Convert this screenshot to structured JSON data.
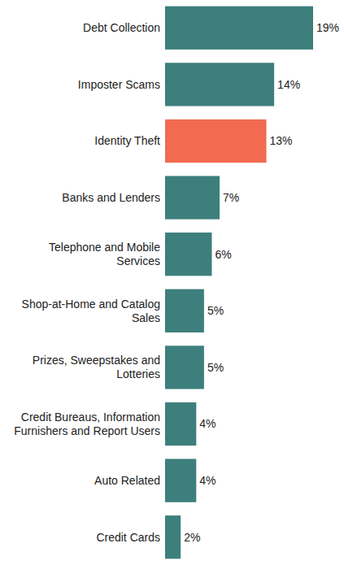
{
  "chart_data": {
    "type": "bar",
    "orientation": "horizontal",
    "categories": [
      "Debt Collection",
      "Imposter Scams",
      "Identity Theft",
      "Banks and Lenders",
      "Telephone and Mobile Services",
      "Shop-at-Home and Catalog Sales",
      "Prizes, Sweepstakes and Lotteries",
      "Credit Bureaus, Information Furnishers and Report Users",
      "Auto Related",
      "Credit Cards"
    ],
    "values": [
      19,
      14,
      13,
      7,
      6,
      5,
      5,
      4,
      4,
      2
    ],
    "value_labels": [
      "19%",
      "14%",
      "13%",
      "7%",
      "6%",
      "5%",
      "5%",
      "4%",
      "4%",
      "2%"
    ],
    "colors": [
      "#3d7f7c",
      "#3d7f7c",
      "#f26b50",
      "#3d7f7c",
      "#3d7f7c",
      "#3d7f7c",
      "#3d7f7c",
      "#3d7f7c",
      "#3d7f7c",
      "#3d7f7c"
    ],
    "data_labels": true,
    "tick_labels": "y"
  }
}
